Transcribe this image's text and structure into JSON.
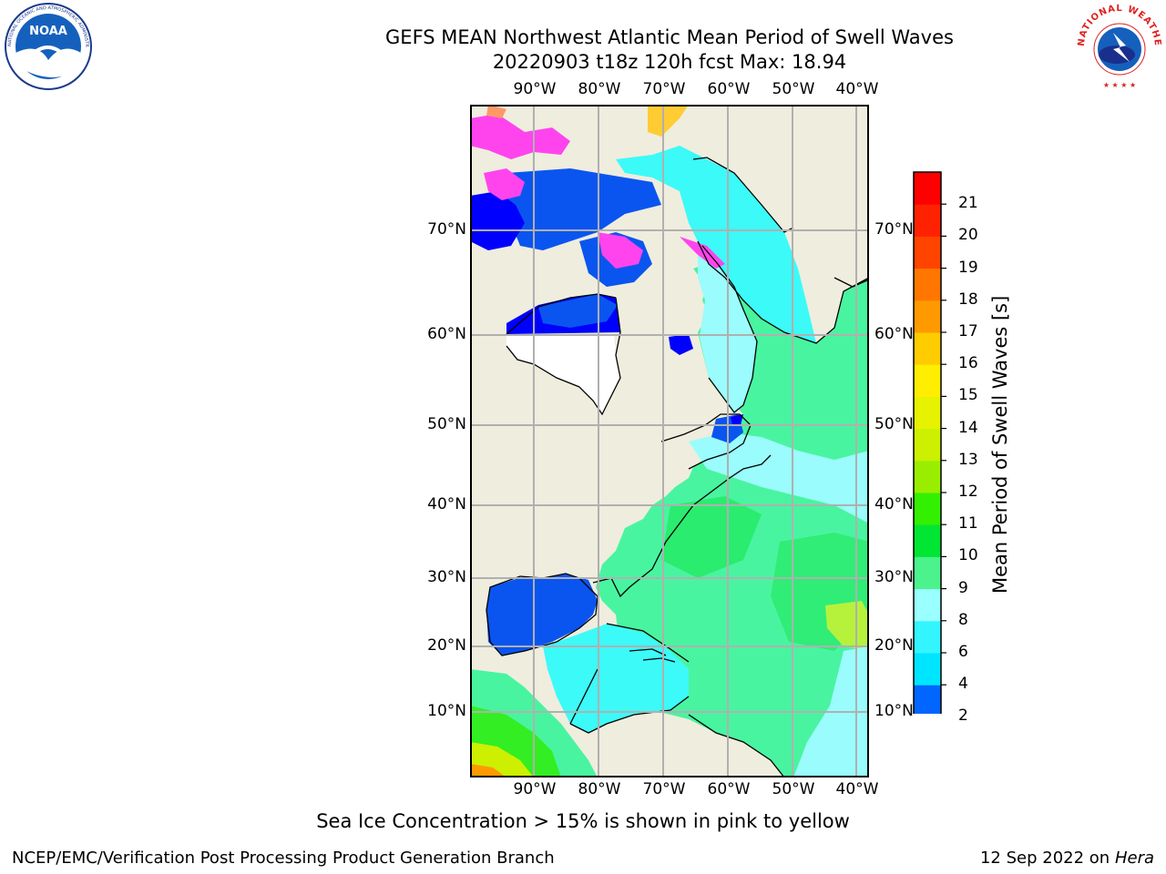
{
  "header": {
    "title_line1": "GEFS MEAN Northwest Atlantic Mean Period of Swell Waves",
    "title_line2": "20220903 t18z 120h fcst   Max: 18.94"
  },
  "logos": {
    "left": "NOAA",
    "left_ring_text": "NATIONAL OCEANIC AND ATMOSPHERIC ADMINISTRATION · U.S. DEPARTMENT OF COMMERCE",
    "right_ring_text": "NATIONAL WEATHER SERVICE"
  },
  "map": {
    "lon_labels": [
      "90°W",
      "80°W",
      "70°W",
      "60°W",
      "50°W",
      "40°W"
    ],
    "lat_labels": [
      "70°N",
      "60°N",
      "50°N",
      "40°N",
      "30°N",
      "20°N",
      "10°N"
    ],
    "colors": {
      "land": "#efedde",
      "ocean_default": "#49f4a0",
      "grid": "#b0b0b0"
    }
  },
  "colorbar": {
    "label": "Mean Period of Swell Waves [s]",
    "ticks": [
      "21",
      "20",
      "19",
      "18",
      "17",
      "16",
      "15",
      "14",
      "13",
      "12",
      "11",
      "10",
      "9",
      "8",
      "6",
      "4",
      "2"
    ],
    "bounds": [
      2,
      4,
      6,
      8,
      9,
      10,
      11,
      12,
      13,
      14,
      15,
      16,
      17,
      18,
      19,
      20,
      21
    ],
    "colors": [
      "#0066ff",
      "#00e5ff",
      "#33f5ff",
      "#99ffff",
      "#4cf28c",
      "#00e633",
      "#33f000",
      "#99ee00",
      "#ccf000",
      "#e6f200",
      "#ffee00",
      "#ffcc00",
      "#ff9900",
      "#ff7700",
      "#ff4400",
      "#ff2200",
      "#ff0000"
    ],
    "extend_color": "#0000ff"
  },
  "caption": "Sea Ice Concentration > 15% is shown in pink to yellow",
  "footer": {
    "left": "NCEP/EMC/Verification Post Processing Product Generation Branch",
    "right_date": "12 Sep 2022 on",
    "right_machine": "Hera"
  }
}
